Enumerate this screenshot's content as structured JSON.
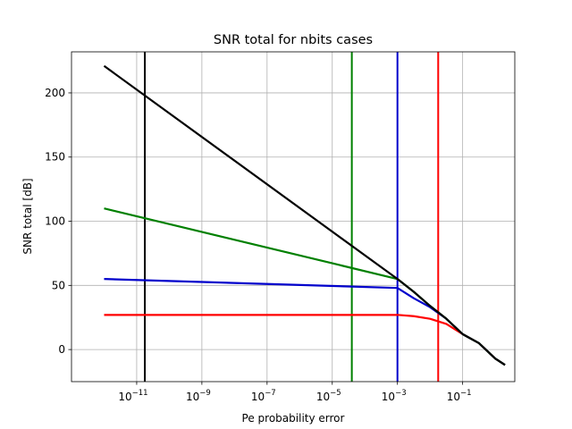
{
  "chart_data": {
    "type": "line",
    "title": "SNR total for nbits cases",
    "xlabel": "Pe probability error",
    "ylabel": "SNR total [dB]",
    "x_scale": "log",
    "xlim_log10": [
      -13.0,
      0.6
    ],
    "ylim": [
      -25,
      232
    ],
    "x_ticks": [
      {
        "log10": -11,
        "base": "10",
        "exp": "−11"
      },
      {
        "log10": -9,
        "base": "10",
        "exp": "−9"
      },
      {
        "log10": -7,
        "base": "10",
        "exp": "−7"
      },
      {
        "log10": -5,
        "base": "10",
        "exp": "−5"
      },
      {
        "log10": -3,
        "base": "10",
        "exp": "−3"
      },
      {
        "log10": -1,
        "base": "10",
        "exp": "−1"
      }
    ],
    "y_ticks": [
      {
        "value": 0,
        "label": "0"
      },
      {
        "value": 50,
        "label": "50"
      },
      {
        "value": 100,
        "label": "100"
      },
      {
        "value": 150,
        "label": "150"
      },
      {
        "value": 200,
        "label": "200"
      }
    ],
    "grid": true,
    "legend": "none",
    "colors": {
      "red": "#ff0000",
      "blue": "#0000cc",
      "green": "#008000",
      "black": "#000000",
      "grid": "#b0b0b0"
    },
    "series": [
      {
        "color": "#ff0000",
        "points": [
          [
            -12,
            27
          ],
          [
            -3,
            27
          ],
          [
            -2.5,
            26
          ],
          [
            -2,
            24
          ],
          [
            -1.5,
            20
          ],
          [
            -1,
            12
          ],
          [
            -0.5,
            5
          ],
          [
            0,
            -7
          ],
          [
            0.3,
            -12
          ]
        ]
      },
      {
        "color": "#0000cc",
        "points": [
          [
            -12,
            55
          ],
          [
            -3,
            48
          ],
          [
            -2.5,
            40
          ],
          [
            -2,
            33
          ],
          [
            -1.5,
            24
          ],
          [
            -1,
            12
          ],
          [
            -0.5,
            5
          ],
          [
            0,
            -7
          ],
          [
            0.3,
            -12
          ]
        ]
      },
      {
        "color": "#008000",
        "points": [
          [
            -12,
            110
          ],
          [
            -3,
            55
          ],
          [
            -2.5,
            45
          ],
          [
            -2,
            34
          ],
          [
            -1.5,
            24
          ],
          [
            -1,
            12
          ],
          [
            -0.5,
            5
          ],
          [
            0,
            -7
          ],
          [
            0.3,
            -12
          ]
        ]
      },
      {
        "color": "#000000",
        "points": [
          [
            -12,
            221
          ],
          [
            -3,
            55
          ],
          [
            -2.5,
            45
          ],
          [
            -2,
            34
          ],
          [
            -1.5,
            24
          ],
          [
            -1,
            12
          ],
          [
            -0.5,
            5
          ],
          [
            0,
            -7
          ],
          [
            0.3,
            -12
          ]
        ]
      }
    ],
    "vertical_lines": [
      {
        "color": "#000000",
        "x_log10": -10.75
      },
      {
        "color": "#008000",
        "x_log10": -4.4
      },
      {
        "color": "#0000cc",
        "x_log10": -3.0
      },
      {
        "color": "#ff0000",
        "x_log10": -1.75
      }
    ]
  }
}
